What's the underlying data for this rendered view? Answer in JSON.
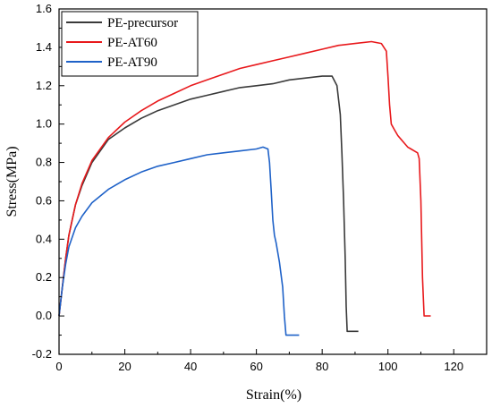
{
  "chart_data": {
    "type": "line",
    "xlabel": "Strain(%)",
    "ylabel": "Stress(MPa)",
    "xlim": [
      0,
      130
    ],
    "ylim": [
      -0.2,
      1.6
    ],
    "x_ticks": [
      0,
      20,
      40,
      60,
      80,
      100,
      120
    ],
    "y_ticks": [
      -0.2,
      0.0,
      0.2,
      0.4,
      0.6,
      0.8,
      1.0,
      1.2,
      1.4,
      1.6
    ],
    "x_tick_labels": [
      "0",
      "20",
      "40",
      "60",
      "80",
      "100",
      "120"
    ],
    "y_tick_labels": [
      "-0.2",
      "0.0",
      "0.2",
      "0.4",
      "0.6",
      "0.8",
      "1.0",
      "1.2",
      "1.4",
      "1.6"
    ],
    "legend_position": "top-left",
    "grid": false,
    "series": [
      {
        "name": "PE-precursor",
        "color": "#3a3a3a",
        "x": [
          0,
          1,
          2,
          3,
          5,
          7,
          10,
          15,
          20,
          25,
          30,
          35,
          40,
          45,
          50,
          55,
          60,
          65,
          70,
          75,
          80,
          83,
          84.5,
          85.5,
          86,
          86.5,
          87,
          87.3,
          87.6,
          88,
          89,
          91
        ],
        "y": [
          0.0,
          0.15,
          0.3,
          0.42,
          0.58,
          0.68,
          0.8,
          0.92,
          0.98,
          1.03,
          1.07,
          1.1,
          1.13,
          1.15,
          1.17,
          1.19,
          1.2,
          1.21,
          1.23,
          1.24,
          1.25,
          1.25,
          1.2,
          1.05,
          0.85,
          0.6,
          0.3,
          0.05,
          -0.08,
          -0.08,
          -0.08,
          -0.08
        ]
      },
      {
        "name": "PE-AT60",
        "color": "#e8191c",
        "x": [
          0,
          1,
          2,
          3,
          5,
          7,
          10,
          15,
          20,
          25,
          30,
          35,
          40,
          45,
          50,
          55,
          60,
          65,
          70,
          75,
          80,
          85,
          90,
          95,
          98,
          99.5,
          100,
          100.5,
          101,
          102,
          103,
          104,
          105,
          106,
          107,
          108,
          109,
          109.5,
          110,
          110.5,
          111,
          112,
          113
        ],
        "y": [
          0.0,
          0.15,
          0.3,
          0.42,
          0.58,
          0.69,
          0.81,
          0.93,
          1.01,
          1.07,
          1.12,
          1.16,
          1.2,
          1.23,
          1.26,
          1.29,
          1.31,
          1.33,
          1.35,
          1.37,
          1.39,
          1.41,
          1.42,
          1.43,
          1.42,
          1.38,
          1.25,
          1.1,
          1.0,
          0.97,
          0.94,
          0.92,
          0.9,
          0.88,
          0.87,
          0.86,
          0.85,
          0.82,
          0.6,
          0.2,
          0.0,
          0.0,
          0.0
        ]
      },
      {
        "name": "PE-AT90",
        "color": "#1f62c8",
        "x": [
          0,
          1,
          2,
          3,
          5,
          7,
          10,
          15,
          20,
          25,
          30,
          35,
          40,
          45,
          50,
          55,
          60,
          62,
          63.5,
          64,
          64.5,
          65,
          65.5,
          66,
          67,
          68,
          68.5,
          69,
          70,
          71,
          72,
          73
        ],
        "y": [
          0.0,
          0.15,
          0.27,
          0.36,
          0.46,
          0.52,
          0.59,
          0.66,
          0.71,
          0.75,
          0.78,
          0.8,
          0.82,
          0.84,
          0.85,
          0.86,
          0.87,
          0.88,
          0.87,
          0.8,
          0.65,
          0.5,
          0.42,
          0.38,
          0.28,
          0.15,
          0.0,
          -0.1,
          -0.1,
          -0.1,
          -0.1,
          -0.1
        ]
      }
    ]
  }
}
